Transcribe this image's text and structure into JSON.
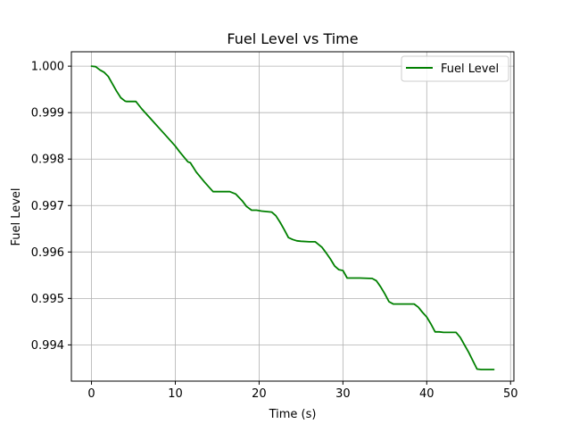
{
  "chart_data": {
    "type": "line",
    "title": "Fuel Level vs Time",
    "xlabel": "Time (s)",
    "ylabel": "Fuel Level",
    "xlim": [
      -2.4,
      50.4
    ],
    "ylim": [
      0.99322,
      1.00031
    ],
    "xticks": [
      0,
      10,
      20,
      30,
      40,
      50
    ],
    "xtick_labels": [
      "0",
      "10",
      "20",
      "30",
      "40",
      "50"
    ],
    "yticks": [
      0.994,
      0.995,
      0.996,
      0.997,
      0.998,
      0.999,
      1.0
    ],
    "ytick_labels": [
      "0.994",
      "0.995",
      "0.996",
      "0.997",
      "0.998",
      "0.999",
      "1.000"
    ],
    "grid": true,
    "legend": {
      "position": "top-right",
      "entries": [
        {
          "label": "Fuel Level",
          "color": "#008000"
        }
      ]
    },
    "series": [
      {
        "name": "Fuel Level",
        "color": "#008000",
        "x": [
          0,
          0.5,
          1,
          1.5,
          2,
          2.5,
          3,
          3.5,
          4,
          4.2,
          5.3,
          6,
          7,
          8,
          9,
          10,
          10.5,
          11.5,
          11.8,
          12.5,
          13.5,
          14.5,
          16.5,
          17.2,
          18,
          18.5,
          19.1,
          19.7,
          20.3,
          21.5,
          22,
          22.5,
          23,
          23.5,
          24,
          24.5,
          25,
          26,
          26.7,
          27.5,
          28,
          28.5,
          29,
          29.5,
          30,
          30.5,
          32,
          33.5,
          34,
          34.5,
          35,
          35.5,
          36,
          37,
          38.5,
          39,
          39.5,
          40,
          40.5,
          41,
          41.5,
          42,
          43.5,
          44,
          44.5,
          45,
          45.5,
          46,
          46.5,
          48
        ],
        "y": [
          1.0,
          0.99999,
          0.99992,
          0.99987,
          0.99978,
          0.99962,
          0.99946,
          0.99932,
          0.99925,
          0.99924,
          0.99924,
          0.99908,
          0.99888,
          0.99868,
          0.99848,
          0.99828,
          0.99816,
          0.99794,
          0.99792,
          0.99772,
          0.9975,
          0.9973,
          0.9973,
          0.99725,
          0.9971,
          0.99698,
          0.9969,
          0.9969,
          0.99688,
          0.99686,
          0.99678,
          0.99664,
          0.99648,
          0.99631,
          0.99627,
          0.99624,
          0.99623,
          0.99622,
          0.99622,
          0.9961,
          0.99598,
          0.99585,
          0.9957,
          0.99562,
          0.9956,
          0.99544,
          0.99544,
          0.99543,
          0.99538,
          0.99525,
          0.9951,
          0.99493,
          0.99488,
          0.99488,
          0.99488,
          0.99481,
          0.9947,
          0.9946,
          0.99445,
          0.99428,
          0.99428,
          0.99427,
          0.99427,
          0.99416,
          0.994,
          0.99384,
          0.99366,
          0.99348,
          0.99347,
          0.99347
        ]
      }
    ]
  }
}
